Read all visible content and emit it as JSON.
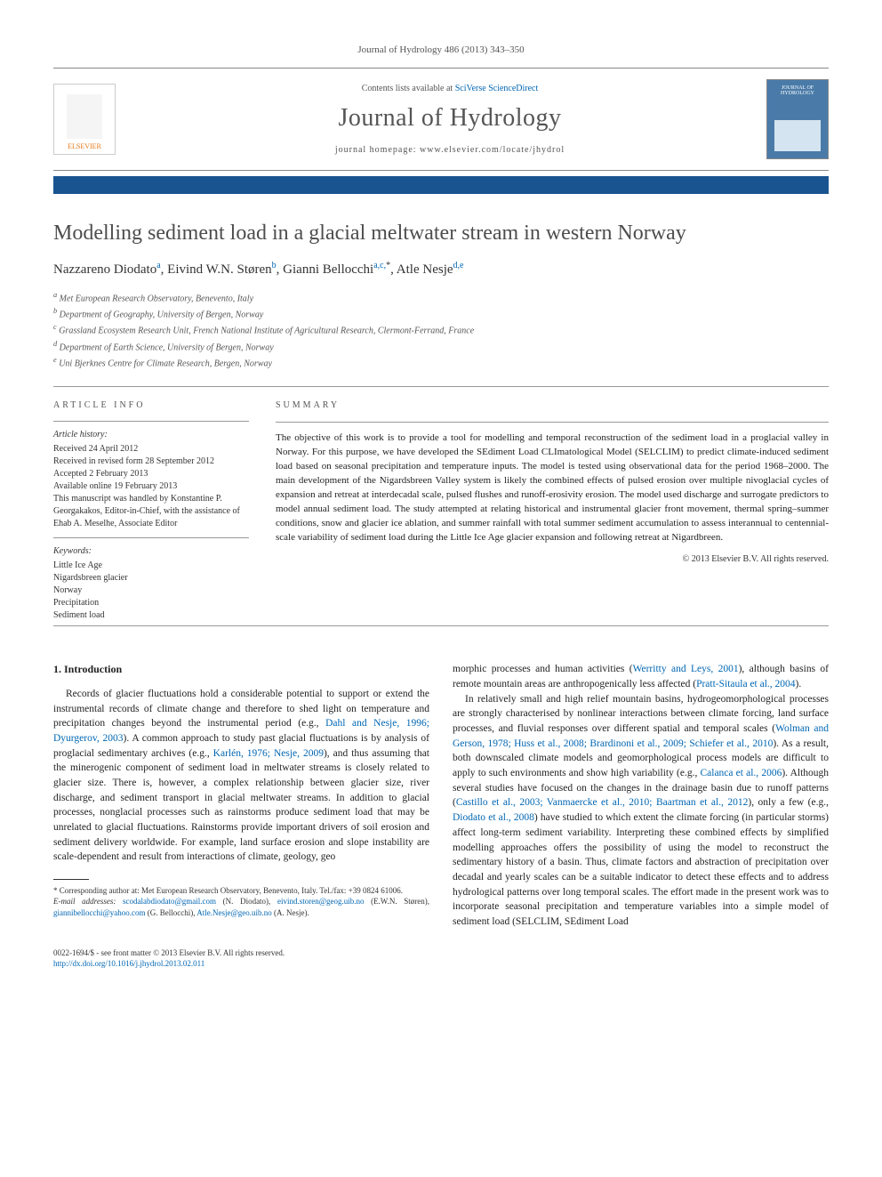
{
  "journal_ref": "Journal of Hydrology 486 (2013) 343–350",
  "header": {
    "elsevier_label": "ELSEVIER",
    "contents_prefix": "Contents lists available at ",
    "contents_link": "SciVerse ScienceDirect",
    "journal_title": "Journal of Hydrology",
    "homepage_prefix": "journal homepage: ",
    "homepage_url": "www.elsevier.com/locate/jhydrol",
    "cover_title": "JOURNAL OF HYDROLOGY"
  },
  "title": "Modelling sediment load in a glacial meltwater stream in western Norway",
  "authors_html": "Nazzareno Diodato<sup>a</sup>, Eivind W.N. Støren<sup>b</sup>, Gianni Bellocchi<sup>a,c,</sup><sup class='star'>*</sup>, Atle Nesje<sup>d,e</sup>",
  "affiliations": [
    "a Met European Research Observatory, Benevento, Italy",
    "b Department of Geography, University of Bergen, Norway",
    "c Grassland Ecosystem Research Unit, French National Institute of Agricultural Research, Clermont-Ferrand, France",
    "d Department of Earth Science, University of Bergen, Norway",
    "e Uni Bjerknes Centre for Climate Research, Bergen, Norway"
  ],
  "article_info": {
    "label": "ARTICLE INFO",
    "history_label": "Article history:",
    "history": [
      "Received 24 April 2012",
      "Received in revised form 28 September 2012",
      "Accepted 2 February 2013",
      "Available online 19 February 2013",
      "This manuscript was handled by Konstantine P. Georgakakos, Editor-in-Chief, with the assistance of Ehab A. Meselhe, Associate Editor"
    ],
    "keywords_label": "Keywords:",
    "keywords": [
      "Little Ice Age",
      "Nigardsbreen glacier",
      "Norway",
      "Precipitation",
      "Sediment load"
    ]
  },
  "summary": {
    "label": "SUMMARY",
    "text": "The objective of this work is to provide a tool for modelling and temporal reconstruction of the sediment load in a proglacial valley in Norway. For this purpose, we have developed the SEdiment Load CLImatological Model (SELCLIM) to predict climate-induced sediment load based on seasonal precipitation and temperature inputs. The model is tested using observational data for the period 1968–2000. The main development of the Nigardsbreen Valley system is likely the combined effects of pulsed erosion over multiple nivoglacial cycles of expansion and retreat at interdecadal scale, pulsed flushes and runoff-erosivity erosion. The model used discharge and surrogate predictors to model annual sediment load. The study attempted at relating historical and instrumental glacier front movement, thermal spring–summer conditions, snow and glacier ice ablation, and summer rainfall with total summer sediment accumulation to assess interannual to centennial-scale variability of sediment load during the Little Ice Age glacier expansion and following retreat at Nigardbreen.",
    "copyright": "© 2013 Elsevier B.V. All rights reserved."
  },
  "body": {
    "section_num": "1.",
    "section_title": "Introduction",
    "col1_p1_a": "Records of glacier fluctuations hold a considerable potential to support or extend the instrumental records of climate change and therefore to shed light on temperature and precipitation changes beyond the instrumental period (e.g., ",
    "col1_cite1": "Dahl and Nesje, 1996; Dyurgerov, 2003",
    "col1_p1_b": "). A common approach to study past glacial fluctuations is by analysis of proglacial sedimentary archives (e.g., ",
    "col1_cite2": "Karlén, 1976; Nesje, 2009",
    "col1_p1_c": "), and thus assuming that the minerogenic component of sediment load in meltwater streams is closely related to glacier size. There is, however, a complex relationship between glacier size, river discharge, and sediment transport in glacial meltwater streams. In addition to glacial processes, nonglacial processes such as rainstorms produce sediment load that may be unrelated to glacial fluctuations. Rainstorms provide important drivers of soil erosion and sediment delivery worldwide. For example, land surface erosion and slope instability are scale-dependent and result from interactions of climate, geology, geo",
    "col2_p1_a": "morphic processes and human activities (",
    "col2_cite1": "Werritty and Leys, 2001",
    "col2_p1_b": "), although basins of remote mountain areas are anthropogenically less affected (",
    "col2_cite2": "Pratt-Sitaula et al., 2004",
    "col2_p1_c": ").",
    "col2_p2_a": "In relatively small and high relief mountain basins, hydrogeomorphological processes are strongly characterised by nonlinear interactions between climate forcing, land surface processes, and fluvial responses over different spatial and temporal scales (",
    "col2_cite3": "Wolman and Gerson, 1978; Huss et al., 2008; Brardinoni et al., 2009; Schiefer et al., 2010",
    "col2_p2_b": "). As a result, both downscaled climate models and geomorphological process models are difficult to apply to such environments and show high variability (e.g., ",
    "col2_cite4": "Calanca et al., 2006",
    "col2_p2_c": "). Although several studies have focused on the changes in the drainage basin due to runoff patterns (",
    "col2_cite5": "Castillo et al., 2003; Vanmaercke et al., 2010; Baartman et al., 2012",
    "col2_p2_d": "), only a few (e.g., ",
    "col2_cite6": "Diodato et al., 2008",
    "col2_p2_e": ") have studied to which extent the climate forcing (in particular storms) affect long-term sediment variability. Interpreting these combined effects by simplified modelling approaches offers the possibility of using the model to reconstruct the sedimentary history of a basin. Thus, climate factors and abstraction of precipitation over decadal and yearly scales can be a suitable indicator to detect these effects and to address hydrological patterns over long temporal scales. The effort made in the present work was to incorporate seasonal precipitation and temperature variables into a simple model of sediment load (SELCLIM, SEdiment Load"
  },
  "footnotes": {
    "corresponding": "* Corresponding author at: Met European Research Observatory, Benevento, Italy. Tel./fax: +39 0824 61006.",
    "email_label": "E-mail addresses: ",
    "emails": [
      {
        "addr": "scodalabdiodato@gmail.com",
        "name": "(N. Diodato)"
      },
      {
        "addr": "eivind.storen@geog.uib.no",
        "name": "(E.W.N. Støren)"
      },
      {
        "addr": "giannibellocchi@yahoo.com",
        "name": "(G. Bellocchi)"
      },
      {
        "addr": "Atle.Nesje@geo.uib.no",
        "name": "(A. Nesje)"
      }
    ]
  },
  "footer": {
    "line1": "0022-1694/$ - see front matter © 2013 Elsevier B.V. All rights reserved.",
    "doi": "http://dx.doi.org/10.1016/j.jhydrol.2013.02.011"
  },
  "colors": {
    "link": "#0066b3",
    "bluebar": "#1a5490",
    "title_gray": "#4d4d4d",
    "elsevier_orange": "#e67817"
  }
}
